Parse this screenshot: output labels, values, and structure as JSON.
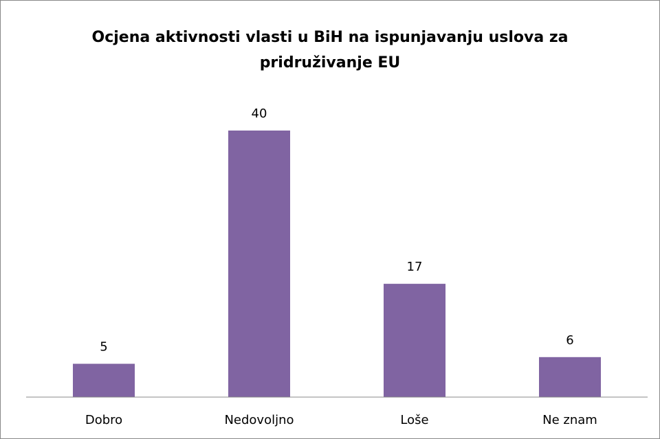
{
  "chart_data": {
    "type": "bar",
    "title": "Ocjena aktivnosti vlasti u BiH na ispunjavanju uslova za pridruživanje EU",
    "categories": [
      "Dobro",
      "Nedovoljno",
      "Loše",
      "Ne znam"
    ],
    "values": [
      5,
      40,
      17,
      6
    ],
    "color": "#8064a2",
    "ylim": [
      0,
      40
    ]
  }
}
